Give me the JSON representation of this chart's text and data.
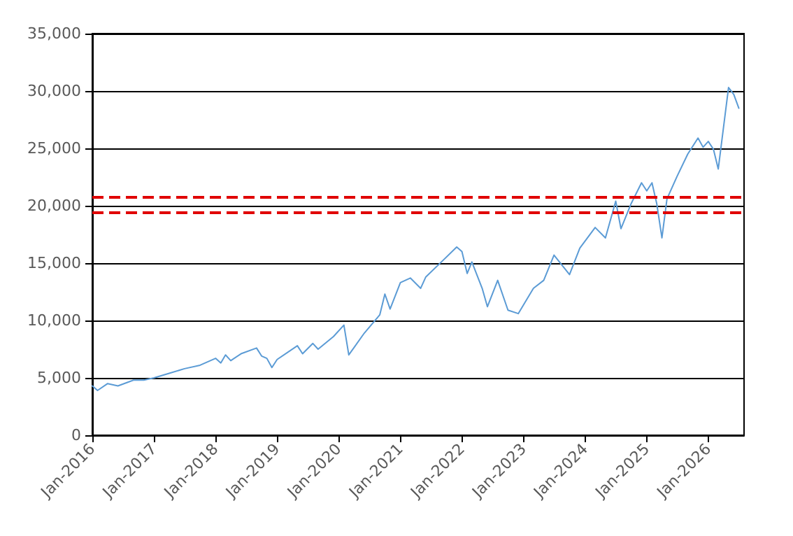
{
  "chart_data": {
    "type": "line",
    "x": [
      "2016-01",
      "2016-02",
      "2016-04",
      "2016-06",
      "2016-09",
      "2016-11",
      "2017-01",
      "2017-04",
      "2017-07",
      "2017-10",
      "2018-01",
      "2018-02",
      "2018-03",
      "2018-04",
      "2018-06",
      "2018-09",
      "2018-10",
      "2018-11",
      "2018-12",
      "2019-01",
      "2019-05",
      "2019-06",
      "2019-08",
      "2019-09",
      "2019-12",
      "2020-02",
      "2020-03",
      "2020-06",
      "2020-09",
      "2020-10",
      "2020-11",
      "2021-01",
      "2021-03",
      "2021-05",
      "2021-06",
      "2021-09",
      "2021-12",
      "2022-01",
      "2022-02",
      "2022-03",
      "2022-05",
      "2022-06",
      "2022-08",
      "2022-10",
      "2022-12",
      "2023-03",
      "2023-05",
      "2023-07",
      "2023-10",
      "2023-12",
      "2024-03",
      "2024-05",
      "2024-07",
      "2024-08",
      "2024-10",
      "2024-12",
      "2025-01",
      "2025-02",
      "2025-03",
      "2025-04",
      "2025-05",
      "2025-07",
      "2025-09",
      "2025-11",
      "2025-12",
      "2026-01",
      "2026-02",
      "2026-03",
      "2026-04",
      "2026-05",
      "2026-06",
      "2026-07"
    ],
    "series": [
      {
        "color": "#5b9bd5",
        "values": [
          4300,
          3900,
          4500,
          4300,
          4800,
          4800,
          5000,
          5400,
          5800,
          6100,
          6700,
          6300,
          7000,
          6500,
          7100,
          7600,
          6900,
          6700,
          5900,
          6600,
          7800,
          7100,
          8000,
          7500,
          8600,
          9600,
          7000,
          8900,
          10500,
          12300,
          11000,
          13300,
          13700,
          12800,
          13800,
          15100,
          16400,
          16000,
          14100,
          15100,
          12800,
          11200,
          13500,
          10900,
          10600,
          12800,
          13500,
          15700,
          14000,
          16300,
          18100,
          17200,
          20400,
          18000,
          20200,
          22000,
          21300,
          22000,
          20200,
          17200,
          20600,
          22600,
          24500,
          25900,
          25100,
          25600,
          24900,
          23200,
          26800,
          30300,
          29700,
          28500
        ]
      }
    ],
    "xlim": [
      "2016-01",
      "2026-08"
    ],
    "xticks": [
      {
        "value": "2016-01",
        "label": "Jan-2016"
      },
      {
        "value": "2017-01",
        "label": "Jan-2017"
      },
      {
        "value": "2018-01",
        "label": "Jan-2018"
      },
      {
        "value": "2019-01",
        "label": "Jan-2019"
      },
      {
        "value": "2020-01",
        "label": "Jan-2020"
      },
      {
        "value": "2021-01",
        "label": "Jan-2021"
      },
      {
        "value": "2022-01",
        "label": "Jan-2022"
      },
      {
        "value": "2023-01",
        "label": "Jan-2023"
      },
      {
        "value": "2024-01",
        "label": "Jan-2024"
      },
      {
        "value": "2025-01",
        "label": "Jan-2025"
      },
      {
        "value": "2026-01",
        "label": "Jan-2026"
      }
    ],
    "ylim": [
      0,
      35000
    ],
    "yticks": [
      {
        "value": 0,
        "label": "0"
      },
      {
        "value": 5000,
        "label": "5,000"
      },
      {
        "value": 10000,
        "label": "10,000"
      },
      {
        "value": 15000,
        "label": "15,000"
      },
      {
        "value": 20000,
        "label": "20,000"
      },
      {
        "value": 25000,
        "label": "25,000"
      },
      {
        "value": 30000,
        "label": "30,000"
      },
      {
        "value": 35000,
        "label": "35,000"
      }
    ],
    "ref_lines": [
      {
        "axis": "y",
        "value": 20800,
        "color": "#e00000",
        "line_style": "dashed"
      },
      {
        "axis": "y",
        "value": 19400,
        "color": "#e00000",
        "line_style": "dashed"
      }
    ],
    "grid": "y",
    "marker": "none",
    "line_style": "solid"
  }
}
